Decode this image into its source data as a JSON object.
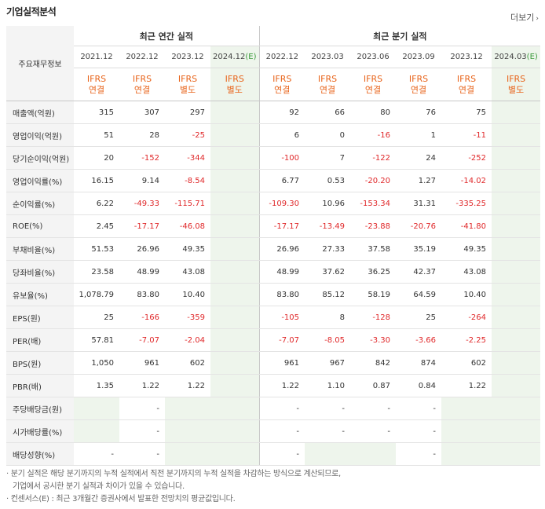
{
  "title": "기업실적분석",
  "more": "더보기",
  "corner": "주요재무정보",
  "groups": {
    "annual": "최근 연간 실적",
    "quarterly": "최근 분기 실적"
  },
  "periods": [
    "2021.12",
    "2022.12",
    "2023.12",
    "2024.12",
    "2022.12",
    "2023.03",
    "2023.06",
    "2023.09",
    "2023.12",
    "2024.03"
  ],
  "estimate_mark": "(E)",
  "standards": [
    {
      "l1": "IFRS",
      "l2": "연결"
    },
    {
      "l1": "IFRS",
      "l2": "연결"
    },
    {
      "l1": "IFRS",
      "l2": "별도"
    },
    {
      "l1": "IFRS",
      "l2": "별도"
    },
    {
      "l1": "IFRS",
      "l2": "연결"
    },
    {
      "l1": "IFRS",
      "l2": "연결"
    },
    {
      "l1": "IFRS",
      "l2": "연결"
    },
    {
      "l1": "IFRS",
      "l2": "연결"
    },
    {
      "l1": "IFRS",
      "l2": "연결"
    },
    {
      "l1": "IFRS",
      "l2": "별도"
    }
  ],
  "rows": [
    {
      "label": "매출액(억원)",
      "values": [
        "315",
        "307",
        "297",
        "",
        "92",
        "66",
        "80",
        "76",
        "75",
        ""
      ]
    },
    {
      "label": "영업이익(억원)",
      "values": [
        "51",
        "28",
        "-25",
        "",
        "6",
        "0",
        "-16",
        "1",
        "-11",
        ""
      ]
    },
    {
      "label": "당기순이익(억원)",
      "values": [
        "20",
        "-152",
        "-344",
        "",
        "-100",
        "7",
        "-122",
        "24",
        "-252",
        ""
      ]
    },
    {
      "label": "영업이익률(%)",
      "values": [
        "16.15",
        "9.14",
        "-8.54",
        "",
        "6.77",
        "0.53",
        "-20.20",
        "1.27",
        "-14.02",
        ""
      ]
    },
    {
      "label": "순이익률(%)",
      "values": [
        "6.22",
        "-49.33",
        "-115.71",
        "",
        "-109.30",
        "10.96",
        "-153.34",
        "31.31",
        "-335.25",
        ""
      ]
    },
    {
      "label": "ROE(%)",
      "values": [
        "2.45",
        "-17.17",
        "-46.08",
        "",
        "-17.17",
        "-13.49",
        "-23.88",
        "-20.76",
        "-41.80",
        ""
      ]
    },
    {
      "label": "부채비율(%)",
      "values": [
        "51.53",
        "26.96",
        "49.35",
        "",
        "26.96",
        "27.33",
        "37.58",
        "35.19",
        "49.35",
        ""
      ]
    },
    {
      "label": "당좌비율(%)",
      "values": [
        "23.58",
        "48.99",
        "43.08",
        "",
        "48.99",
        "37.62",
        "36.25",
        "42.37",
        "43.08",
        ""
      ]
    },
    {
      "label": "유보율(%)",
      "values": [
        "1,078.79",
        "83.80",
        "10.40",
        "",
        "83.80",
        "85.12",
        "58.19",
        "64.59",
        "10.40",
        ""
      ]
    },
    {
      "label": "EPS(원)",
      "values": [
        "25",
        "-166",
        "-359",
        "",
        "-105",
        "8",
        "-128",
        "25",
        "-264",
        ""
      ]
    },
    {
      "label": "PER(배)",
      "values": [
        "57.81",
        "-7.07",
        "-2.04",
        "",
        "-7.07",
        "-8.05",
        "-3.30",
        "-3.66",
        "-2.25",
        ""
      ]
    },
    {
      "label": "BPS(원)",
      "values": [
        "1,050",
        "961",
        "602",
        "",
        "961",
        "967",
        "842",
        "874",
        "602",
        ""
      ]
    },
    {
      "label": "PBR(배)",
      "values": [
        "1.35",
        "1.22",
        "1.22",
        "",
        "1.22",
        "1.10",
        "0.87",
        "0.84",
        "1.22",
        ""
      ]
    },
    {
      "label": "주당배당금(원)",
      "values": [
        "",
        "-",
        "",
        "",
        "-",
        "-",
        "-",
        "-",
        "",
        ""
      ]
    },
    {
      "label": "시가배당률(%)",
      "values": [
        "",
        "-",
        "",
        "",
        "-",
        "-",
        "-",
        "-",
        "",
        ""
      ]
    },
    {
      "label": "배당성향(%)",
      "values": [
        "-",
        "-",
        "",
        "",
        "-",
        "",
        "",
        "-",
        "",
        ""
      ]
    }
  ],
  "notes": [
    "분기 실적은 해당 분기까지의 누적 실적에서 직전 분기까지의 누적 실적을 차감하는 방식으로 계산되므로,",
    "기업에서 공시한 분기 실적과 차이가 있을 수 있습니다.",
    "컨센서스(E) : 최근 3개월간 증권사에서 발표한 전망치의 평균값입니다."
  ],
  "colors": {
    "negative": "#e0282a",
    "accent": "#e8641b",
    "estimate_bg": "#eef5ec",
    "estimate_mark": "#3a9a3a"
  }
}
